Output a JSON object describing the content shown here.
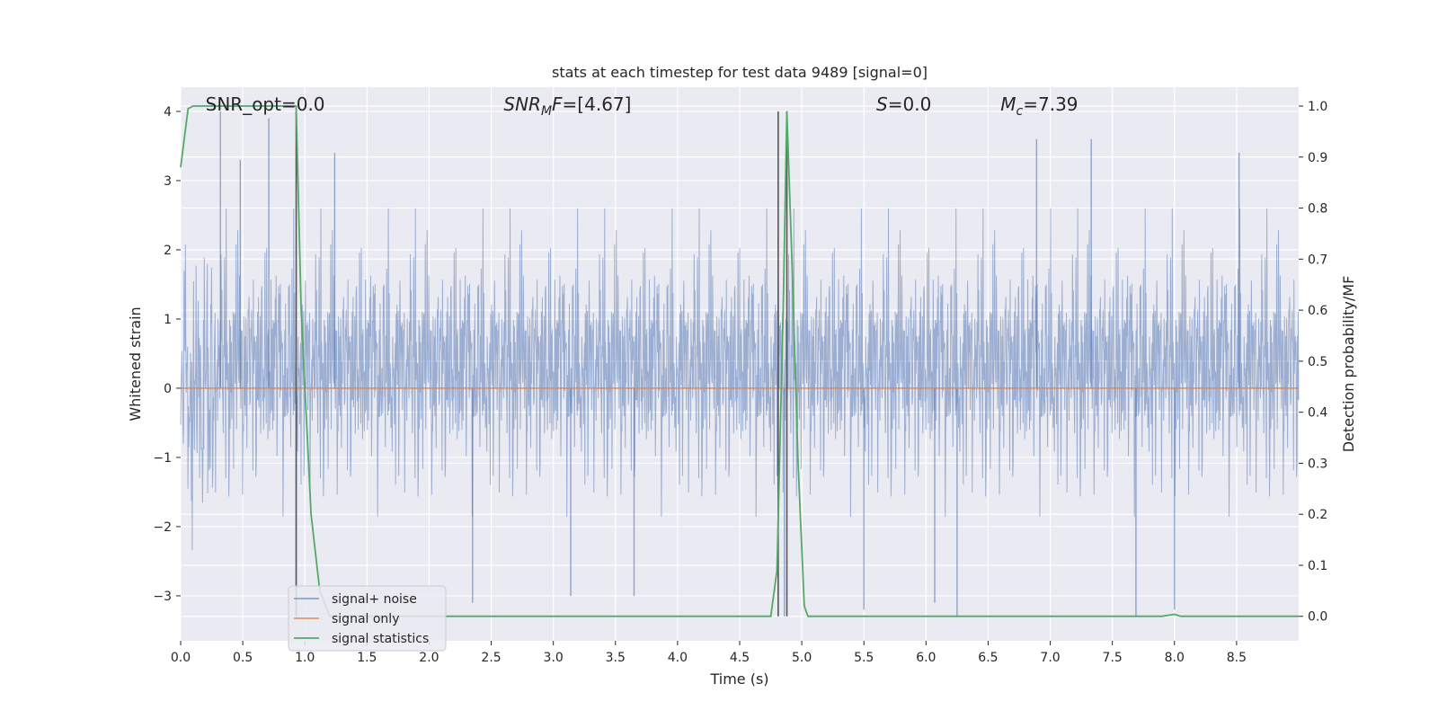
{
  "chart_data": {
    "type": "line",
    "title": "stats at each timestep for test data 9489 [signal=0]",
    "xlabel": "Time (s)",
    "ylabel": "Whitened strain",
    "y2label": "Detection probability/MF",
    "xlim": [
      0.0,
      9.0
    ],
    "ylim": [
      -3.65,
      4.35
    ],
    "y2lim": [
      -0.048,
      1.037
    ],
    "xticks": [
      0.0,
      0.5,
      1.0,
      1.5,
      2.0,
      2.5,
      3.0,
      3.5,
      4.0,
      4.5,
      5.0,
      5.5,
      6.0,
      6.5,
      7.0,
      7.5,
      8.0,
      8.5
    ],
    "xtick_labels": [
      "0.0",
      "0.5",
      "1.0",
      "1.5",
      "2.0",
      "2.5",
      "3.0",
      "3.5",
      "4.0",
      "4.5",
      "5.0",
      "5.5",
      "6.0",
      "6.5",
      "7.0",
      "7.5",
      "8.0",
      "8.5"
    ],
    "yticks": [
      -3,
      -2,
      -1,
      0,
      1,
      2,
      3,
      4
    ],
    "ytick_labels": [
      "−3",
      "−2",
      "−1",
      "0",
      "1",
      "2",
      "3",
      "4"
    ],
    "y2ticks": [
      0.0,
      0.1,
      0.2,
      0.3,
      0.4,
      0.5,
      0.6,
      0.7,
      0.8,
      0.9,
      1.0
    ],
    "y2tick_labels": [
      "0.0",
      "0.1",
      "0.2",
      "0.3",
      "0.4",
      "0.5",
      "0.6",
      "0.7",
      "0.8",
      "0.9",
      "1.0"
    ],
    "grid": true,
    "legend_position": "lower-left",
    "colors": {
      "background": "#eaeaf2",
      "grid": "#ffffff",
      "noise": "#4c72b0",
      "signal": "#dd8452",
      "stats": "#55a868",
      "vlines": "#555555"
    },
    "annotations": [
      {
        "text": "SNR_opt=0.0",
        "x": 0.2
      },
      {
        "text": "SNR_MF=[4.67]",
        "x": 2.6
      },
      {
        "text": "S=0.0",
        "x": 5.6
      },
      {
        "text": "Mc=7.39",
        "x": 6.6
      }
    ],
    "vertical_lines": [
      0.93,
      4.81,
      4.88
    ],
    "series": [
      {
        "name": "signal+ noise",
        "axis": "left",
        "display": "dense noise trace (peaks up to ~4.0, troughs down to ~-3.3); key extrema listed",
        "amplitude": 1.8,
        "x": [
          0.32,
          0.48,
          0.71,
          0.93,
          1.24,
          2.35,
          3.14,
          3.65,
          4.86,
          5.5,
          6.07,
          6.25,
          6.89,
          7.33,
          7.69,
          8.0,
          8.52
        ],
        "values": [
          4.0,
          3.3,
          3.9,
          -3.3,
          3.4,
          -3.1,
          -3.0,
          -3.0,
          -3.3,
          -3.2,
          -3.1,
          -3.3,
          3.6,
          3.6,
          -3.3,
          -3.2,
          3.4
        ]
      },
      {
        "name": "signal only",
        "axis": "left",
        "x": [
          0.0,
          9.0
        ],
        "values": [
          0.0,
          0.0
        ]
      },
      {
        "name": "signal statistics",
        "axis": "right",
        "x": [
          0.0,
          0.06,
          0.1,
          0.2,
          0.93,
          0.97,
          1.05,
          1.12,
          1.2,
          1.5,
          2.0,
          3.0,
          4.0,
          4.75,
          4.8,
          4.85,
          4.88,
          4.92,
          4.97,
          5.02,
          5.05,
          5.3,
          6.0,
          7.0,
          7.9,
          8.0,
          8.05,
          8.5,
          9.0
        ],
        "values": [
          0.88,
          0.995,
          1.0,
          1.0,
          1.0,
          0.6,
          0.2,
          0.05,
          0.0,
          0.0,
          0.0,
          0.0,
          0.0,
          0.0,
          0.09,
          0.6,
          0.99,
          0.7,
          0.3,
          0.02,
          0.0,
          0.0,
          0.0,
          0.0,
          0.0,
          0.004,
          0.0,
          0.0,
          0.0
        ]
      }
    ]
  }
}
